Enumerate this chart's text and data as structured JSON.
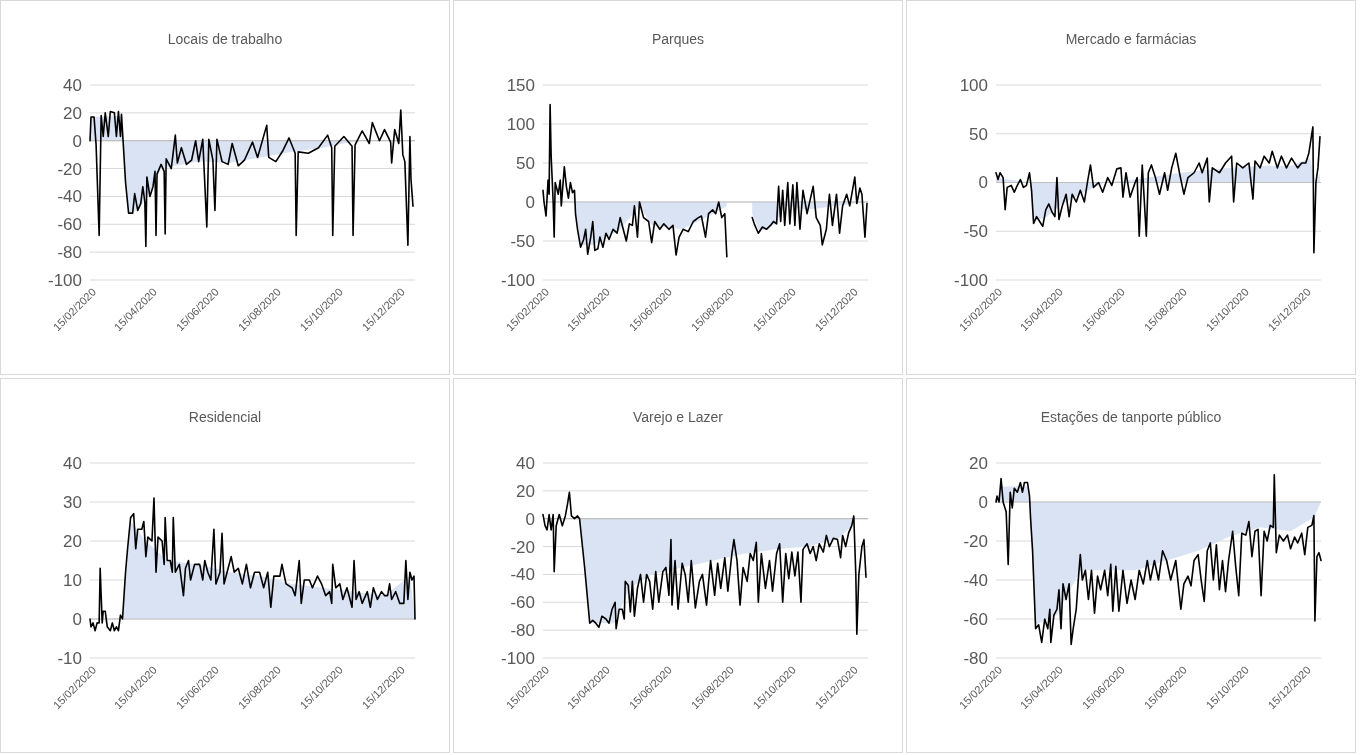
{
  "chart_data": [
    {
      "type": "line",
      "title": "Locais de trabalho",
      "xlim": [
        "2020-02-15",
        "2020-12-31"
      ],
      "xticks": [
        {
          "value": "2020-02-15",
          "label": "15/02/2020"
        },
        {
          "value": "2020-04-15",
          "label": "15/04/2020"
        },
        {
          "value": "2020-06-15",
          "label": "15/06/2020"
        },
        {
          "value": "2020-08-15",
          "label": "15/08/2020"
        },
        {
          "value": "2020-10-15",
          "label": "15/10/2020"
        },
        {
          "value": "2020-12-15",
          "label": "15/12/2020"
        }
      ],
      "ylim": [
        -100,
        40
      ],
      "yticks": [
        -100,
        -80,
        -60,
        -40,
        -20,
        0,
        20,
        40
      ],
      "grid": "y",
      "series": [
        {
          "type": "area",
          "color": "#dae3f3",
          "x": [
            "2020-02-15",
            "2020-02-16",
            "2020-03-17",
            "2020-03-21",
            "2020-03-24",
            "2020-04-02",
            "2020-04-12",
            "2020-04-25",
            "2020-05-09",
            "2020-06-01",
            "2020-07-01",
            "2020-08-01",
            "2020-09-01",
            "2020-10-01",
            "2020-10-22",
            "2020-11-09",
            "2020-12-01",
            "2020-12-29"
          ],
          "values": [
            0,
            17,
            18,
            -30,
            -52,
            -50,
            -40,
            -20,
            -18,
            -15,
            -16,
            -12,
            -8,
            -5,
            -2,
            0,
            0,
            0
          ]
        },
        {
          "type": "line",
          "color": "#000000",
          "x": [
            "2020-02-15",
            "2020-02-16",
            "2020-02-19",
            "2020-02-21",
            "2020-02-24",
            "2020-02-26",
            "2020-02-28",
            "2020-03-01",
            "2020-03-04",
            "2020-03-06",
            "2020-03-10",
            "2020-03-12",
            "2020-03-14",
            "2020-03-16",
            "2020-03-17",
            "2020-03-21",
            "2020-03-24",
            "2020-03-28",
            "2020-03-30",
            "2020-04-02",
            "2020-04-05",
            "2020-04-07",
            "2020-04-09",
            "2020-04-10",
            "2020-04-11",
            "2020-04-14",
            "2020-04-17",
            "2020-04-19",
            "2020-04-20",
            "2020-04-21",
            "2020-04-25",
            "2020-04-28",
            "2020-04-29",
            "2020-04-30",
            "2020-05-05",
            "2020-05-09",
            "2020-05-11",
            "2020-05-15",
            "2020-05-20",
            "2020-05-25",
            "2020-05-29",
            "2020-06-01",
            "2020-06-05",
            "2020-06-09",
            "2020-06-11",
            "2020-06-15",
            "2020-06-17",
            "2020-06-19",
            "2020-06-24",
            "2020-06-30",
            "2020-07-04",
            "2020-07-10",
            "2020-07-16",
            "2020-07-24",
            "2020-07-29",
            "2020-08-07",
            "2020-08-09",
            "2020-08-16",
            "2020-08-23",
            "2020-08-29",
            "2020-09-04",
            "2020-09-05",
            "2020-09-07",
            "2020-09-17",
            "2020-09-27",
            "2020-10-06",
            "2020-10-10",
            "2020-10-11",
            "2020-10-13",
            "2020-10-22",
            "2020-10-30",
            "2020-10-31",
            "2020-11-02",
            "2020-11-09",
            "2020-11-16",
            "2020-11-19",
            "2020-11-26",
            "2020-12-01",
            "2020-12-07",
            "2020-12-08",
            "2020-12-11",
            "2020-12-15",
            "2020-12-17",
            "2020-12-19",
            "2020-12-21",
            "2020-12-24",
            "2020-12-26",
            "2020-12-27",
            "2020-12-29"
          ],
          "values": [
            0,
            17,
            17,
            -3,
            -68,
            18,
            3,
            20,
            3,
            21,
            20,
            3,
            21,
            3,
            19,
            -30,
            -52,
            -52,
            -38,
            -50,
            -45,
            -33,
            -44,
            -76,
            -26,
            -40,
            -33,
            -22,
            -68,
            -24,
            -17,
            -22,
            -67,
            -13,
            -20,
            4,
            -16,
            -5,
            -17,
            -14,
            0,
            -15,
            1,
            -62,
            1,
            -14,
            -50,
            1,
            -15,
            -17,
            -2,
            -18,
            -14,
            -1,
            -12,
            11,
            -12,
            -15,
            -7,
            2,
            -9,
            -68,
            -8,
            -9,
            -5,
            4,
            -5,
            -68,
            -4,
            3,
            -4,
            -68,
            -3,
            7,
            -2,
            13,
            0,
            8,
            -1,
            -16,
            8,
            -2,
            22,
            -10,
            -15,
            -75,
            3,
            -27,
            -47
          ]
        }
      ]
    },
    {
      "type": "line",
      "title": "Parques",
      "xlim": [
        "2020-02-15",
        "2020-12-31"
      ],
      "xticks": [
        {
          "value": "2020-02-15",
          "label": "15/02/2020"
        },
        {
          "value": "2020-04-15",
          "label": "15/04/2020"
        },
        {
          "value": "2020-06-15",
          "label": "15/06/2020"
        },
        {
          "value": "2020-08-15",
          "label": "15/08/2020"
        },
        {
          "value": "2020-10-15",
          "label": "15/10/2020"
        },
        {
          "value": "2020-12-15",
          "label": "15/12/2020"
        }
      ],
      "ylim": [
        -100,
        150
      ],
      "yticks": [
        -100,
        -50,
        0,
        50,
        100,
        150
      ],
      "grid": "y",
      "series": [
        {
          "type": "area",
          "color": "#dae3f3",
          "x": [
            "2020-02-15",
            "2020-03-17",
            "2020-03-23",
            "2020-04-05",
            "2020-05-01",
            "2020-05-20",
            "2020-06-01",
            "2020-07-01",
            "2020-08-01",
            "2020-08-14",
            "2020-08-25",
            "2020-09-08",
            "2020-09-15",
            "2020-10-01",
            "2020-10-10",
            "2020-11-01",
            "2020-12-30"
          ],
          "values": [
            0,
            0,
            -55,
            -55,
            -35,
            -5,
            -30,
            -35,
            -15,
            -5,
            null,
            -15,
            -38,
            -28,
            -5,
            -10,
            0
          ]
        },
        {
          "type": "line",
          "color": "#000000",
          "x": [
            "2020-02-15",
            "2020-02-16",
            "2020-02-18",
            "2020-02-20",
            "2020-02-21",
            "2020-02-22",
            "2020-02-23",
            "2020-02-25",
            "2020-02-26",
            "2020-02-27",
            "2020-03-01",
            "2020-03-03",
            "2020-03-04",
            "2020-03-07",
            "2020-03-09",
            "2020-03-11",
            "2020-03-13",
            "2020-03-15",
            "2020-03-17",
            "2020-03-18",
            "2020-03-20",
            "2020-03-23",
            "2020-03-26",
            "2020-03-28",
            "2020-03-30",
            "2020-04-02",
            "2020-04-04",
            "2020-04-06",
            "2020-04-09",
            "2020-04-11",
            "2020-04-14",
            "2020-04-17",
            "2020-04-20",
            "2020-04-24",
            "2020-04-28",
            "2020-05-01",
            "2020-05-04",
            "2020-05-07",
            "2020-05-10",
            "2020-05-13",
            "2020-05-15",
            "2020-05-18",
            "2020-05-20",
            "2020-05-24",
            "2020-05-29",
            "2020-06-01",
            "2020-06-04",
            "2020-06-09",
            "2020-06-13",
            "2020-06-18",
            "2020-06-22",
            "2020-06-25",
            "2020-06-28",
            "2020-07-02",
            "2020-07-07",
            "2020-07-12",
            "2020-07-17",
            "2020-07-20",
            "2020-07-24",
            "2020-07-27",
            "2020-07-31",
            "2020-08-03",
            "2020-08-06",
            "2020-08-09",
            "2020-08-12",
            "2020-08-14",
            "2020-08-25",
            "2020-09-08",
            "2020-09-10",
            "2020-09-14",
            "2020-09-18",
            "2020-09-22",
            "2020-09-26",
            "2020-09-29",
            "2020-10-02",
            "2020-10-04",
            "2020-10-06",
            "2020-10-08",
            "2020-10-10",
            "2020-10-13",
            "2020-10-15",
            "2020-10-18",
            "2020-10-20",
            "2020-10-22",
            "2020-10-25",
            "2020-10-28",
            "2020-11-01",
            "2020-11-07",
            "2020-11-10",
            "2020-11-14",
            "2020-11-16",
            "2020-11-20",
            "2020-11-23",
            "2020-11-26",
            "2020-11-30",
            "2020-12-03",
            "2020-12-06",
            "2020-12-10",
            "2020-12-13",
            "2020-12-18",
            "2020-12-20",
            "2020-12-23",
            "2020-12-25",
            "2020-12-28",
            "2020-12-30"
          ],
          "values": [
            15,
            0,
            -18,
            28,
            10,
            125,
            60,
            0,
            -45,
            25,
            10,
            28,
            -5,
            45,
            20,
            5,
            25,
            12,
            15,
            -15,
            -35,
            -58,
            -48,
            -35,
            -67,
            -45,
            -25,
            -62,
            -60,
            -45,
            -58,
            -40,
            -48,
            -35,
            -40,
            -20,
            -35,
            -50,
            -28,
            -30,
            -5,
            -45,
            0,
            -20,
            -25,
            -52,
            -25,
            -35,
            -28,
            -35,
            -30,
            -68,
            -45,
            -35,
            -38,
            -25,
            -20,
            -18,
            -45,
            -15,
            -10,
            -15,
            0,
            -20,
            -15,
            -70,
            null,
            -20,
            -28,
            -40,
            -32,
            -35,
            -30,
            -25,
            -28,
            20,
            -25,
            15,
            -30,
            25,
            -28,
            22,
            -30,
            25,
            -35,
            15,
            -15,
            20,
            -20,
            -30,
            -55,
            -35,
            10,
            -30,
            10,
            -40,
            -5,
            10,
            -5,
            32,
            -2,
            18,
            10,
            -45,
            -2
          ]
        }
      ]
    },
    {
      "type": "line",
      "title": "Mercado e farmácias",
      "xlim": [
        "2020-02-15",
        "2020-12-31"
      ],
      "xticks": [
        {
          "value": "2020-02-15",
          "label": "15/02/2020"
        },
        {
          "value": "2020-04-15",
          "label": "15/04/2020"
        },
        {
          "value": "2020-06-15",
          "label": "15/06/2020"
        },
        {
          "value": "2020-08-15",
          "label": "15/08/2020"
        },
        {
          "value": "2020-10-15",
          "label": "15/10/2020"
        },
        {
          "value": "2020-12-15",
          "label": "15/12/2020"
        }
      ],
      "ylim": [
        -100,
        100
      ],
      "yticks": [
        -100,
        -50,
        0,
        50,
        100
      ],
      "grid": "y",
      "series": [
        {
          "type": "area",
          "color": "#dae3f3",
          "x": [
            "2020-02-15",
            "2020-03-20",
            "2020-03-23",
            "2020-04-05",
            "2020-04-20",
            "2020-05-12",
            "2020-06-01",
            "2020-07-01",
            "2020-08-01",
            "2020-09-01",
            "2020-10-01",
            "2020-11-01",
            "2020-12-01",
            "2020-12-20",
            "2020-12-26",
            "2020-12-30"
          ],
          "values": [
            5,
            0,
            -40,
            -35,
            -22,
            -10,
            0,
            3,
            8,
            12,
            15,
            17,
            17,
            25,
            0,
            10
          ]
        },
        {
          "type": "line",
          "color": "#000000",
          "x": [
            "2020-02-15",
            "2020-02-17",
            "2020-02-19",
            "2020-02-22",
            "2020-02-24",
            "2020-02-26",
            "2020-03-01",
            "2020-03-04",
            "2020-03-07",
            "2020-03-10",
            "2020-03-13",
            "2020-03-16",
            "2020-03-19",
            "2020-03-21",
            "2020-03-23",
            "2020-03-26",
            "2020-03-29",
            "2020-04-01",
            "2020-04-04",
            "2020-04-07",
            "2020-04-10",
            "2020-04-13",
            "2020-04-15",
            "2020-04-17",
            "2020-04-20",
            "2020-04-24",
            "2020-04-27",
            "2020-04-30",
            "2020-05-04",
            "2020-05-08",
            "2020-05-12",
            "2020-05-15",
            "2020-05-18",
            "2020-05-21",
            "2020-05-26",
            "2020-05-30",
            "2020-06-04",
            "2020-06-08",
            "2020-06-13",
            "2020-06-17",
            "2020-06-19",
            "2020-06-22",
            "2020-06-26",
            "2020-07-01",
            "2020-07-03",
            "2020-07-05",
            "2020-07-08",
            "2020-07-12",
            "2020-07-14",
            "2020-07-17",
            "2020-07-21",
            "2020-07-25",
            "2020-07-30",
            "2020-08-02",
            "2020-08-06",
            "2020-08-10",
            "2020-08-14",
            "2020-08-18",
            "2020-08-22",
            "2020-08-28",
            "2020-09-02",
            "2020-09-05",
            "2020-09-10",
            "2020-09-12",
            "2020-09-15",
            "2020-09-22",
            "2020-09-28",
            "2020-10-04",
            "2020-10-06",
            "2020-10-09",
            "2020-10-15",
            "2020-10-21",
            "2020-10-25",
            "2020-10-27",
            "2020-11-01",
            "2020-11-05",
            "2020-11-10",
            "2020-11-13",
            "2020-11-18",
            "2020-11-22",
            "2020-11-27",
            "2020-12-02",
            "2020-12-08",
            "2020-12-12",
            "2020-12-16",
            "2020-12-19",
            "2020-12-23",
            "2020-12-24",
            "2020-12-26",
            "2020-12-28",
            "2020-12-30"
          ],
          "values": [
            10,
            3,
            10,
            5,
            -28,
            -5,
            -3,
            -10,
            -3,
            3,
            -5,
            -3,
            10,
            -8,
            -42,
            -35,
            -40,
            -45,
            -28,
            -22,
            -30,
            -35,
            5,
            -38,
            -25,
            -12,
            -35,
            -12,
            -20,
            -8,
            -20,
            0,
            18,
            -5,
            0,
            -10,
            5,
            -3,
            14,
            15,
            -15,
            10,
            -15,
            0,
            5,
            -55,
            18,
            -55,
            10,
            18,
            5,
            -12,
            10,
            -8,
            15,
            30,
            8,
            -12,
            5,
            10,
            20,
            10,
            25,
            -20,
            15,
            10,
            20,
            27,
            -20,
            20,
            15,
            20,
            -17,
            22,
            15,
            27,
            20,
            32,
            15,
            27,
            15,
            25,
            15,
            20,
            20,
            30,
            57,
            -72,
            0,
            15,
            47
          ]
        }
      ]
    },
    {
      "type": "line",
      "title": "Residencial",
      "xlim": [
        "2020-02-15",
        "2020-12-31"
      ],
      "xticks": [
        {
          "value": "2020-02-15",
          "label": "15/02/2020"
        },
        {
          "value": "2020-04-15",
          "label": "15/04/2020"
        },
        {
          "value": "2020-06-15",
          "label": "15/06/2020"
        },
        {
          "value": "2020-08-15",
          "label": "15/08/2020"
        },
        {
          "value": "2020-10-15",
          "label": "15/10/2020"
        },
        {
          "value": "2020-12-15",
          "label": "15/12/2020"
        }
      ],
      "ylim": [
        -10,
        40
      ],
      "yticks": [
        -10,
        0,
        10,
        20,
        30,
        40
      ],
      "grid": "y",
      "series": [
        {
          "type": "area",
          "color": "#dae3f3",
          "x": [
            "2020-02-15",
            "2020-03-18",
            "2020-03-26",
            "2020-04-10",
            "2020-05-01",
            "2020-06-01",
            "2020-07-01",
            "2020-08-01",
            "2020-09-01",
            "2020-10-01",
            "2020-11-01",
            "2020-12-01",
            "2020-12-26",
            "2020-12-31"
          ],
          "values": [
            0,
            0,
            25,
            20,
            15,
            14,
            12,
            11,
            9,
            8,
            7,
            6,
            11,
            0
          ]
        },
        {
          "type": "line",
          "color": "#000000",
          "x": [
            "2020-02-15",
            "2020-02-16",
            "2020-02-18",
            "2020-02-20",
            "2020-02-22",
            "2020-02-24",
            "2020-02-25",
            "2020-02-27",
            "2020-02-28",
            "2020-03-01",
            "2020-03-03",
            "2020-03-06",
            "2020-03-08",
            "2020-03-10",
            "2020-03-12",
            "2020-03-14",
            "2020-03-16",
            "2020-03-18",
            "2020-03-21",
            "2020-03-23",
            "2020-03-26",
            "2020-03-29",
            "2020-03-31",
            "2020-04-02",
            "2020-04-06",
            "2020-04-08",
            "2020-04-10",
            "2020-04-12",
            "2020-04-16",
            "2020-04-18",
            "2020-04-20",
            "2020-04-22",
            "2020-04-26",
            "2020-04-28",
            "2020-04-29",
            "2020-05-01",
            "2020-05-04",
            "2020-05-06",
            "2020-05-07",
            "2020-05-09",
            "2020-05-13",
            "2020-05-15",
            "2020-05-17",
            "2020-05-19",
            "2020-05-22",
            "2020-05-24",
            "2020-05-28",
            "2020-06-02",
            "2020-06-05",
            "2020-06-07",
            "2020-06-10",
            "2020-06-13",
            "2020-06-16",
            "2020-06-18",
            "2020-06-22",
            "2020-06-24",
            "2020-06-26",
            "2020-06-30",
            "2020-07-03",
            "2020-07-06",
            "2020-07-10",
            "2020-07-14",
            "2020-07-18",
            "2020-07-22",
            "2020-07-26",
            "2020-07-31",
            "2020-08-04",
            "2020-08-08",
            "2020-08-11",
            "2020-08-14",
            "2020-08-20",
            "2020-08-22",
            "2020-08-26",
            "2020-09-01",
            "2020-09-04",
            "2020-09-08",
            "2020-09-10",
            "2020-09-13",
            "2020-09-18",
            "2020-09-21",
            "2020-09-26",
            "2020-09-30",
            "2020-10-04",
            "2020-10-08",
            "2020-10-10",
            "2020-10-11",
            "2020-10-14",
            "2020-10-18",
            "2020-10-21",
            "2020-10-25",
            "2020-10-30",
            "2020-11-01",
            "2020-11-03",
            "2020-11-06",
            "2020-11-09",
            "2020-11-14",
            "2020-11-17",
            "2020-11-20",
            "2020-11-24",
            "2020-11-28",
            "2020-12-01",
            "2020-12-04",
            "2020-12-06",
            "2020-12-08",
            "2020-12-12",
            "2020-12-16",
            "2020-12-20",
            "2020-12-22",
            "2020-12-24",
            "2020-12-26",
            "2020-12-28",
            "2020-12-30",
            "2020-12-31"
          ],
          "values": [
            0,
            -2,
            -1,
            -3,
            -1,
            -1,
            13,
            -1,
            2,
            2,
            -2,
            -3,
            -1,
            -3,
            -2,
            -3,
            1,
            0,
            12,
            18,
            26,
            27,
            18,
            23,
            23,
            25,
            16,
            21,
            20,
            31,
            12,
            21,
            20,
            14,
            26,
            15,
            15,
            12,
            26,
            12,
            14,
            10,
            6,
            13,
            15,
            10,
            14,
            14,
            10,
            15,
            12,
            10,
            23,
            9,
            12,
            22,
            9,
            13,
            16,
            12,
            13,
            9,
            14,
            8,
            12,
            12,
            8,
            12,
            3,
            11,
            11,
            14,
            9,
            8,
            6,
            15,
            4,
            10,
            10,
            8,
            11,
            9,
            6,
            7,
            4,
            14,
            8,
            9,
            5,
            8,
            3,
            15,
            5,
            7,
            4,
            7,
            3,
            8,
            5,
            7,
            6,
            6,
            9,
            5,
            7,
            4,
            4,
            15,
            5,
            12,
            10,
            11,
            0
          ]
        }
      ]
    },
    {
      "type": "line",
      "title": "Varejo e Lazer",
      "xlim": [
        "2020-02-15",
        "2020-12-31"
      ],
      "xticks": [
        {
          "value": "2020-02-15",
          "label": "15/02/2020"
        },
        {
          "value": "2020-04-15",
          "label": "15/04/2020"
        },
        {
          "value": "2020-06-15",
          "label": "15/06/2020"
        },
        {
          "value": "2020-08-15",
          "label": "15/08/2020"
        },
        {
          "value": "2020-10-15",
          "label": "15/10/2020"
        },
        {
          "value": "2020-12-15",
          "label": "15/12/2020"
        }
      ],
      "ylim": [
        -100,
        40
      ],
      "yticks": [
        -100,
        -80,
        -60,
        -40,
        -20,
        0,
        20,
        40
      ],
      "grid": "y",
      "series": [
        {
          "type": "area",
          "color": "#dae3f3",
          "x": [
            "2020-02-15",
            "2020-03-22",
            "2020-04-01",
            "2020-04-25",
            "2020-05-10",
            "2020-06-01",
            "2020-07-01",
            "2020-08-01",
            "2020-09-01",
            "2020-10-01",
            "2020-11-01",
            "2020-12-01",
            "2020-12-15",
            "2020-12-17",
            "2020-12-29"
          ],
          "values": [
            0,
            0,
            -75,
            -75,
            -50,
            -40,
            -35,
            -30,
            -25,
            -22,
            -20,
            -15,
            -5,
            0,
            0
          ]
        },
        {
          "type": "line",
          "color": "#000000",
          "x": [
            "2020-02-15",
            "2020-02-17",
            "2020-02-19",
            "2020-02-21",
            "2020-02-23",
            "2020-02-25",
            "2020-02-26",
            "2020-02-28",
            "2020-03-02",
            "2020-03-05",
            "2020-03-08",
            "2020-03-10",
            "2020-03-12",
            "2020-03-14",
            "2020-03-17",
            "2020-03-20",
            "2020-03-22",
            "2020-03-27",
            "2020-04-01",
            "2020-04-04",
            "2020-04-07",
            "2020-04-10",
            "2020-04-13",
            "2020-04-17",
            "2020-04-20",
            "2020-04-23",
            "2020-04-26",
            "2020-04-27",
            "2020-04-30",
            "2020-05-03",
            "2020-05-05",
            "2020-05-06",
            "2020-05-09",
            "2020-05-11",
            "2020-05-13",
            "2020-05-15",
            "2020-05-18",
            "2020-05-21",
            "2020-05-24",
            "2020-05-27",
            "2020-05-30",
            "2020-06-02",
            "2020-06-05",
            "2020-06-08",
            "2020-06-12",
            "2020-06-15",
            "2020-06-18",
            "2020-06-20",
            "2020-06-21",
            "2020-06-24",
            "2020-06-27",
            "2020-07-01",
            "2020-07-04",
            "2020-07-07",
            "2020-07-10",
            "2020-07-14",
            "2020-07-18",
            "2020-07-21",
            "2020-07-25",
            "2020-07-29",
            "2020-08-02",
            "2020-08-05",
            "2020-08-08",
            "2020-08-12",
            "2020-08-15",
            "2020-08-19",
            "2020-08-21",
            "2020-08-24",
            "2020-08-27",
            "2020-08-30",
            "2020-09-03",
            "2020-09-06",
            "2020-09-09",
            "2020-09-12",
            "2020-09-14",
            "2020-09-17",
            "2020-09-21",
            "2020-09-25",
            "2020-09-28",
            "2020-10-02",
            "2020-10-05",
            "2020-10-08",
            "2020-10-11",
            "2020-10-14",
            "2020-10-17",
            "2020-10-20",
            "2020-10-23",
            "2020-10-26",
            "2020-10-28",
            "2020-11-01",
            "2020-11-04",
            "2020-11-07",
            "2020-11-10",
            "2020-11-13",
            "2020-11-17",
            "2020-11-20",
            "2020-11-23",
            "2020-11-27",
            "2020-12-01",
            "2020-12-04",
            "2020-12-06",
            "2020-12-09",
            "2020-12-12",
            "2020-12-15",
            "2020-12-17",
            "2020-12-19",
            "2020-12-20",
            "2020-12-22",
            "2020-12-25",
            "2020-12-27",
            "2020-12-29"
          ],
          "values": [
            3,
            -5,
            -8,
            3,
            -8,
            3,
            -38,
            -5,
            3,
            -5,
            2,
            10,
            19,
            2,
            0,
            2,
            0,
            -35,
            -75,
            -73,
            -75,
            -78,
            -70,
            -72,
            -75,
            -65,
            -60,
            -79,
            -65,
            -65,
            -72,
            -45,
            -48,
            -67,
            -45,
            -70,
            -50,
            -40,
            -60,
            -40,
            -45,
            -65,
            -38,
            -60,
            -38,
            -35,
            -55,
            -15,
            -62,
            -30,
            -65,
            -32,
            -40,
            -60,
            -30,
            -64,
            -45,
            -40,
            -62,
            -30,
            -55,
            -32,
            -50,
            -28,
            -52,
            -25,
            -15,
            -30,
            -62,
            -35,
            -45,
            -25,
            -30,
            -17,
            -60,
            -25,
            -50,
            -30,
            -52,
            -25,
            -18,
            -60,
            -25,
            -43,
            -24,
            -41,
            -24,
            -60,
            -22,
            -18,
            -25,
            -20,
            -30,
            -18,
            -24,
            -12,
            -20,
            -14,
            -15,
            -28,
            -12,
            -20,
            -10,
            -5,
            2,
            -40,
            -83,
            -40,
            -20,
            -15,
            -42
          ]
        }
      ]
    },
    {
      "type": "line",
      "title": "Estações de tanporte público",
      "xlim": [
        "2020-02-15",
        "2020-12-31"
      ],
      "xticks": [
        {
          "value": "2020-02-15",
          "label": "15/02/2020"
        },
        {
          "value": "2020-04-15",
          "label": "15/04/2020"
        },
        {
          "value": "2020-06-15",
          "label": "15/06/2020"
        },
        {
          "value": "2020-08-15",
          "label": "15/08/2020"
        },
        {
          "value": "2020-10-15",
          "label": "15/10/2020"
        },
        {
          "value": "2020-12-15",
          "label": "15/12/2020"
        }
      ],
      "ylim": [
        -80,
        20
      ],
      "yticks": [
        -80,
        -60,
        -40,
        -20,
        0,
        20
      ],
      "grid": "y",
      "series": [
        {
          "type": "area",
          "color": "#dae3f3",
          "x": [
            "2020-02-15",
            "2020-02-20",
            "2020-03-17",
            "2020-03-19",
            "2020-03-25",
            "2020-04-15",
            "2020-05-08",
            "2020-06-01",
            "2020-07-01",
            "2020-08-01",
            "2020-09-01",
            "2020-10-01",
            "2020-11-01",
            "2020-12-01",
            "2020-12-24",
            "2020-12-31"
          ],
          "values": [
            0,
            8,
            8,
            0,
            -63,
            -58,
            -35,
            -35,
            -35,
            -30,
            -25,
            -18,
            -13,
            -15,
            -8,
            0
          ]
        },
        {
          "type": "line",
          "color": "#000000",
          "x": [
            "2020-02-15",
            "2020-02-16",
            "2020-02-18",
            "2020-02-20",
            "2020-02-22",
            "2020-02-25",
            "2020-02-27",
            "2020-02-29",
            "2020-03-02",
            "2020-03-04",
            "2020-03-07",
            "2020-03-10",
            "2020-03-12",
            "2020-03-14",
            "2020-03-17",
            "2020-03-19",
            "2020-03-20",
            "2020-03-22",
            "2020-03-25",
            "2020-03-28",
            "2020-03-31",
            "2020-04-03",
            "2020-04-06",
            "2020-04-08",
            "2020-04-09",
            "2020-04-12",
            "2020-04-15",
            "2020-04-17",
            "2020-04-19",
            "2020-04-21",
            "2020-04-24",
            "2020-04-27",
            "2020-04-29",
            "2020-05-01",
            "2020-05-04",
            "2020-05-06",
            "2020-05-08",
            "2020-05-10",
            "2020-05-13",
            "2020-05-16",
            "2020-05-19",
            "2020-05-22",
            "2020-05-25",
            "2020-05-28",
            "2020-06-01",
            "2020-06-04",
            "2020-06-07",
            "2020-06-09",
            "2020-06-12",
            "2020-06-15",
            "2020-06-19",
            "2020-06-23",
            "2020-06-27",
            "2020-07-01",
            "2020-07-05",
            "2020-07-09",
            "2020-07-13",
            "2020-07-16",
            "2020-07-20",
            "2020-07-24",
            "2020-07-28",
            "2020-08-01",
            "2020-08-05",
            "2020-08-10",
            "2020-08-15",
            "2020-08-18",
            "2020-08-22",
            "2020-08-25",
            "2020-08-28",
            "2020-09-01",
            "2020-09-04",
            "2020-09-07",
            "2020-09-10",
            "2020-09-13",
            "2020-09-16",
            "2020-09-19",
            "2020-09-22",
            "2020-09-25",
            "2020-09-28",
            "2020-10-01",
            "2020-10-05",
            "2020-10-08",
            "2020-10-11",
            "2020-10-14",
            "2020-10-18",
            "2020-10-21",
            "2020-10-24",
            "2020-10-27",
            "2020-10-30",
            "2020-11-02",
            "2020-11-05",
            "2020-11-08",
            "2020-11-11",
            "2020-11-14",
            "2020-11-15",
            "2020-11-17",
            "2020-11-20",
            "2020-11-24",
            "2020-11-28",
            "2020-12-01",
            "2020-12-05",
            "2020-12-08",
            "2020-12-12",
            "2020-12-15",
            "2020-12-18",
            "2020-12-22",
            "2020-12-24",
            "2020-12-25",
            "2020-12-27",
            "2020-12-29",
            "2020-12-31"
          ],
          "values": [
            0,
            3,
            0,
            12,
            0,
            -5,
            -32,
            5,
            -3,
            7,
            5,
            10,
            5,
            10,
            10,
            3,
            -8,
            -25,
            -65,
            -63,
            -72,
            -60,
            -65,
            -55,
            -72,
            -58,
            -55,
            -45,
            -65,
            -42,
            -50,
            -42,
            -73,
            -65,
            -55,
            -40,
            -27,
            -40,
            -35,
            -50,
            -35,
            -57,
            -38,
            -45,
            -35,
            -48,
            -32,
            -56,
            -33,
            -56,
            -35,
            -52,
            -40,
            -50,
            -35,
            -42,
            -30,
            -40,
            -30,
            -40,
            -25,
            -30,
            -40,
            -30,
            -55,
            -42,
            -38,
            -43,
            -30,
            -27,
            -40,
            -51,
            -25,
            -21,
            -40,
            -22,
            -45,
            -30,
            -46,
            -30,
            -15,
            -33,
            -48,
            -16,
            -17,
            -10,
            -28,
            -15,
            -14,
            -48,
            -15,
            -20,
            -12,
            -13,
            14,
            -26,
            -17,
            -20,
            -17,
            -24,
            -18,
            -21,
            -16,
            -27,
            -13,
            -12,
            -7,
            -61,
            -28,
            -26,
            -30
          ]
        }
      ]
    }
  ]
}
